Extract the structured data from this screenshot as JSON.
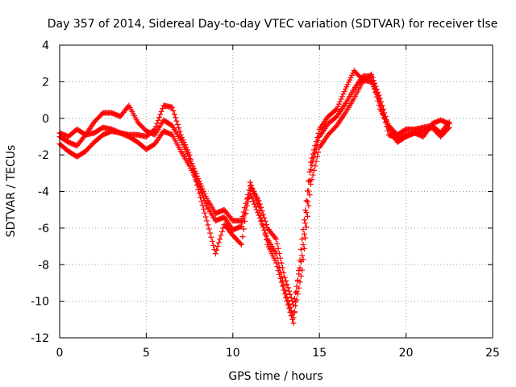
{
  "chart_data": {
    "type": "scatter",
    "title": "Day 357 of 2014, Sidereal Day-to-day VTEC variation (SDTVAR) for receiver tlse",
    "xlabel": "GPS time / hours",
    "ylabel": "SDTVAR / TECUs",
    "xlim": [
      0,
      25
    ],
    "ylim": [
      -12,
      4
    ],
    "xticks": [
      0,
      5,
      10,
      15,
      20,
      25
    ],
    "yticks": [
      4,
      2,
      0,
      -2,
      -4,
      -6,
      -8,
      -10,
      -12
    ],
    "xtick_labels": [
      "0",
      "5",
      "10",
      "15",
      "20",
      "25"
    ],
    "ytick_labels": [
      "4",
      "2",
      "0",
      "-2",
      "-4",
      "-6",
      "-8",
      "-10",
      "-12"
    ],
    "grid": true,
    "marker": "+",
    "color": "#ff0000",
    "series": [
      {
        "name": "track-1",
        "x": [
          0,
          0.5,
          1.0,
          1.5,
          2.0,
          2.5,
          3.0,
          3.5,
          4.0,
          4.5,
          5.0,
          5.5,
          6.0,
          6.5,
          7.0,
          7.5,
          8.0,
          8.5,
          9.0,
          9.5,
          10.0,
          10.5,
          11.0,
          11.5,
          12.0,
          12.5,
          13.0,
          13.5,
          14.0,
          14.5,
          15.0,
          15.5,
          16.0,
          16.5,
          17.0,
          17.5,
          18.0,
          18.5,
          19.0,
          19.5,
          20.0,
          20.5,
          21.0,
          21.5,
          22.0,
          22.5
        ],
        "y": [
          -1.4,
          -1.8,
          -2.1,
          -1.8,
          -1.3,
          -0.9,
          -0.7,
          -0.8,
          -1.0,
          -1.3,
          -1.7,
          -1.4,
          -0.7,
          -0.9,
          -1.8,
          -2.6,
          -3.6,
          -4.8,
          -5.6,
          -5.4,
          -6.1,
          -5.9,
          -4.1,
          -5.3,
          -6.6,
          -7.4,
          -9.4,
          -10.9,
          -8.3,
          -3.6,
          -1.6,
          -0.9,
          -0.4,
          0.3,
          1.1,
          2.0,
          2.4,
          1.1,
          -0.5,
          -1.3,
          -1.0,
          -0.8,
          -0.7,
          -0.5,
          -1.0,
          -0.5
        ]
      },
      {
        "name": "track-2",
        "x": [
          0,
          0.5,
          1.0,
          1.5,
          2.0,
          2.5,
          3.0,
          3.5,
          4.0,
          4.5,
          5.0,
          5.5,
          6.0,
          6.5,
          7.0,
          7.5,
          8.0,
          8.5,
          9.0,
          9.5,
          10.0,
          10.5,
          11.0,
          11.5,
          12.0,
          12.5,
          13.0,
          13.5,
          14.0,
          14.5,
          15.0,
          15.5,
          16.0,
          16.5,
          17.0,
          17.5,
          18.0,
          18.5,
          19.0,
          19.5,
          20.0,
          20.5,
          21.0,
          21.5,
          22.0,
          22.5
        ],
        "y": [
          -1.0,
          -1.3,
          -1.5,
          -0.9,
          -0.2,
          0.3,
          0.3,
          0.1,
          0.7,
          -0.2,
          -0.7,
          -0.9,
          -0.1,
          -0.4,
          -1.2,
          -2.2,
          -3.3,
          -4.4,
          -5.2,
          -5.0,
          -5.6,
          -5.6,
          -3.7,
          -4.5,
          -6.0,
          -6.6,
          -8.7,
          -10.2,
          -7.5,
          -2.8,
          -1.0,
          -0.3,
          0.1,
          0.8,
          1.6,
          2.3,
          2.3,
          0.5,
          -0.4,
          -0.9,
          -0.6,
          -0.6,
          -0.5,
          -0.4,
          -0.8,
          -0.2
        ]
      },
      {
        "name": "track-3",
        "x": [
          0,
          0.5,
          1.0,
          1.5,
          2.0,
          2.5,
          3.0,
          3.5,
          4.0,
          4.5,
          5.0,
          5.5,
          6.0,
          6.5,
          7.0,
          7.5,
          8.0,
          8.5,
          9.0,
          9.5,
          10.0,
          10.5,
          11.0,
          11.5,
          12.0,
          12.5,
          13.0,
          13.5,
          14.0,
          14.5,
          15.0,
          15.5,
          16.0,
          16.5,
          17.0,
          17.5,
          18.0,
          18.5,
          19.0,
          19.5,
          20.0,
          20.5,
          21.0,
          21.5,
          22.0,
          22.5
        ],
        "y": [
          -0.8,
          -1.0,
          -0.6,
          -0.9,
          -0.8,
          -0.5,
          -0.6,
          -0.8,
          -0.9,
          -0.9,
          -1.0,
          -0.6,
          0.7,
          0.6,
          -0.9,
          -2.0,
          -3.9,
          -5.6,
          -7.4,
          -5.8,
          -6.4,
          -6.9,
          -3.5,
          -4.8,
          -6.9,
          -7.9,
          -9.6,
          -11.2,
          -6.6,
          -2.4,
          -0.6,
          0.1,
          0.5,
          1.6,
          2.6,
          2.1,
          2.0,
          0.9,
          -0.9,
          -1.1,
          -0.9,
          -0.8,
          -1.0,
          -0.3,
          -0.1,
          -0.3
        ]
      }
    ]
  }
}
